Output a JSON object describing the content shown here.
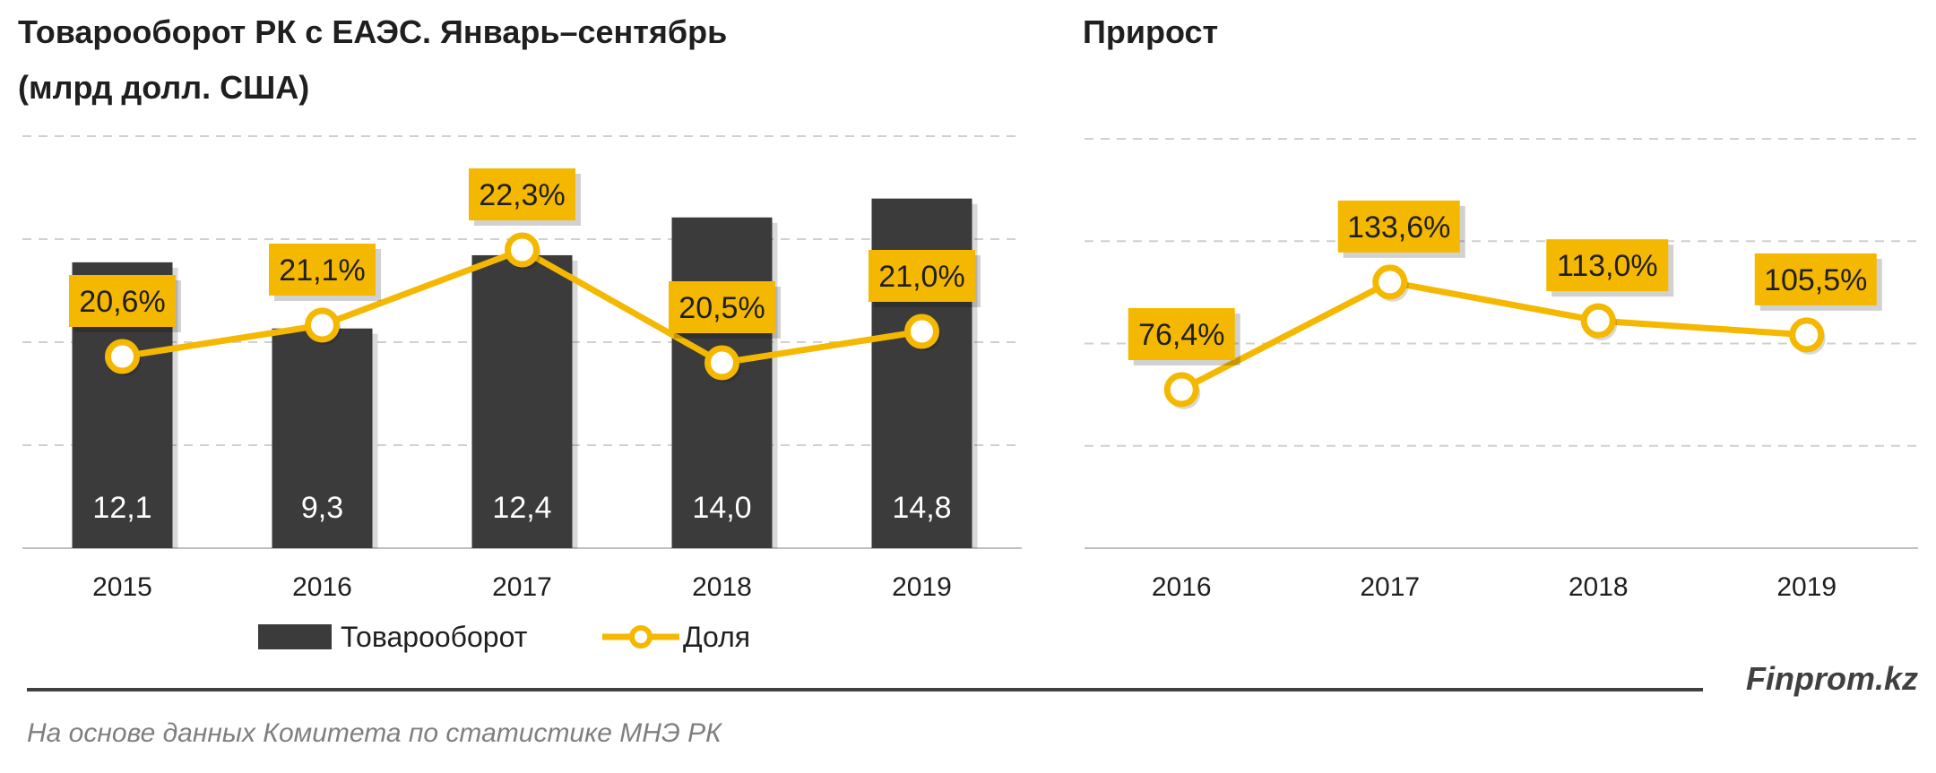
{
  "colors": {
    "bar": "#3b3b3b",
    "line": "#f5b800",
    "grid": "#d0d0d0",
    "label_bg": "#f5b800"
  },
  "chart_data": [
    {
      "type": "bar",
      "title": "Товарооборот РК с ЕАЭС. Январь–сентябрь",
      "subtitle": "(млрд долл. США)",
      "categories": [
        "2015",
        "2016",
        "2017",
        "2018",
        "2019"
      ],
      "series": [
        {
          "name": "Товарооборот",
          "type": "bar",
          "values": [
            12.1,
            9.3,
            12.4,
            14.0,
            14.8
          ],
          "labels": [
            "12,1",
            "9,3",
            "12,4",
            "14,0",
            "14,8"
          ]
        },
        {
          "name": "Доля",
          "type": "line",
          "values": [
            20.6,
            21.1,
            22.3,
            20.5,
            21.0
          ],
          "labels": [
            "20,6%",
            "21,1%",
            "22,3%",
            "20,5%",
            "21,0%"
          ]
        }
      ],
      "grid": true,
      "legend": "bottom"
    },
    {
      "type": "line",
      "title": "Прирост",
      "categories": [
        "2016",
        "2017",
        "2018",
        "2019"
      ],
      "series": [
        {
          "name": "Прирост",
          "values": [
            76.4,
            133.6,
            113.0,
            105.5
          ],
          "labels": [
            "76,4%",
            "133,6%",
            "113,0%",
            "105,5%"
          ]
        }
      ],
      "grid": true
    }
  ],
  "legend": {
    "bar_label": "Товарооборот",
    "line_label": "Доля"
  },
  "footer": {
    "brand": "Finprom.kz",
    "source": "На основе данных  Комитета по статистике МНЭ РК"
  }
}
